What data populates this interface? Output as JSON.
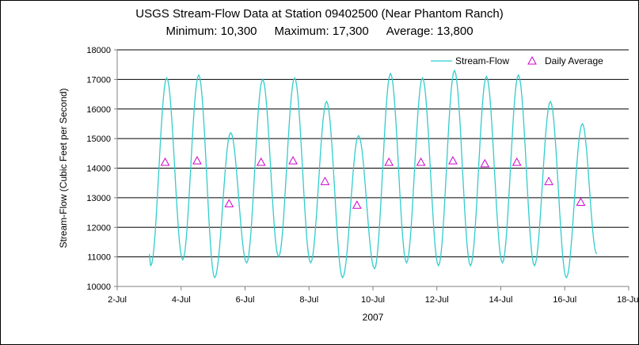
{
  "chart": {
    "title": "USGS Stream-Flow Data at Station 09402500 (Near Phantom Ranch)",
    "stats": {
      "minimum": "Minimum: 10,300",
      "maximum": "Maximum: 17,300",
      "average": "Average: 13,800"
    },
    "xlabel": "2007",
    "ylabel": "Stream-Flow (Cubic Feet per Second)"
  },
  "colors": {
    "stream_flow": "#33cccc",
    "daily_average": "#cc00cc",
    "grid": "#000000",
    "axis": "#808080"
  },
  "chart_data": {
    "type": "line",
    "title": "USGS Stream-Flow Data at Station 09402500 (Near Phantom Ranch)",
    "xlabel": "2007",
    "ylabel": "Stream-Flow (Cubic Feet per Second)",
    "x_ticks": [
      "2-Jul",
      "4-Jul",
      "6-Jul",
      "8-Jul",
      "10-Jul",
      "12-Jul",
      "14-Jul",
      "16-Jul",
      "18-Jul"
    ],
    "xlim": [
      2,
      18
    ],
    "y_ticks": [
      10000,
      11000,
      12000,
      13000,
      14000,
      15000,
      16000,
      17000,
      18000
    ],
    "ylim": [
      10000,
      18000
    ],
    "grid": "horizontal major gridlines",
    "legend_position": "top-right",
    "series": [
      {
        "name": "Stream-Flow",
        "style": "line",
        "start": 11100,
        "end": 11100,
        "daily": [
          {
            "day": 3,
            "min": 10700,
            "peak": 17050
          },
          {
            "day": 4,
            "min": 10900,
            "peak": 17150
          },
          {
            "day": 5,
            "min": 10300,
            "peak": 15200
          },
          {
            "day": 6,
            "min": 10800,
            "peak": 17000
          },
          {
            "day": 7,
            "min": 11000,
            "peak": 17050
          },
          {
            "day": 8,
            "min": 10800,
            "peak": 16250
          },
          {
            "day": 9,
            "min": 10300,
            "peak": 15100
          },
          {
            "day": 10,
            "min": 10600,
            "peak": 17200
          },
          {
            "day": 11,
            "min": 10800,
            "peak": 17050
          },
          {
            "day": 12,
            "min": 10700,
            "peak": 17300
          },
          {
            "day": 13,
            "min": 10700,
            "peak": 17100
          },
          {
            "day": 14,
            "min": 10800,
            "peak": 17150
          },
          {
            "day": 15,
            "min": 10700,
            "peak": 16250
          },
          {
            "day": 16,
            "min": 10300,
            "peak": 15500
          }
        ]
      },
      {
        "name": "Daily Average",
        "style": "triangle-markers",
        "x": [
          3.5,
          4.5,
          5.5,
          6.5,
          7.5,
          8.5,
          9.5,
          10.5,
          11.5,
          12.5,
          13.5,
          14.5,
          15.5,
          16.5
        ],
        "y": [
          14200,
          14250,
          12800,
          14200,
          14250,
          13550,
          12750,
          14200,
          14200,
          14250,
          14150,
          14200,
          13550,
          12850
        ]
      }
    ]
  }
}
